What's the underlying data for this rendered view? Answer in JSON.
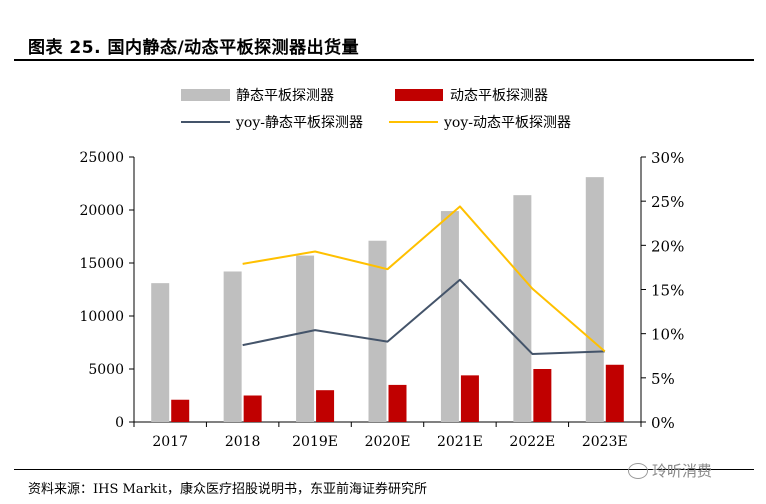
{
  "header": {
    "title": "图表 25. 国内静态/动态平板探测器出货量"
  },
  "footer": {
    "source": "资料来源：IHS Markit，康众医疗招股说明书，东亚前海证券研究所",
    "watermark": "玲听消费"
  },
  "colors": {
    "static_bar": "#BFBFBF",
    "dynamic_bar": "#C00000",
    "yoy_static": "#44546A",
    "yoy_dynamic": "#FFC000"
  },
  "chart_data": {
    "type": "bar",
    "categories": [
      "2017",
      "2018",
      "2019E",
      "2020E",
      "2021E",
      "2022E",
      "2023E"
    ],
    "series": [
      {
        "name": "静态平板探测器",
        "kind": "bar",
        "axis": "left",
        "values": [
          13100,
          14200,
          15700,
          17100,
          19900,
          21400,
          23100
        ]
      },
      {
        "name": "动态平板探测器",
        "kind": "bar",
        "axis": "left",
        "values": [
          2100,
          2500,
          3000,
          3500,
          4400,
          5000,
          5400
        ]
      },
      {
        "name": "yoy-静态平板探测器",
        "kind": "line",
        "axis": "right",
        "values": [
          null,
          0.087,
          0.104,
          0.091,
          0.161,
          0.077,
          0.08
        ]
      },
      {
        "name": "yoy-动态平板探测器",
        "kind": "line",
        "axis": "right",
        "values": [
          null,
          0.179,
          0.193,
          0.173,
          0.244,
          0.151,
          0.08
        ]
      }
    ],
    "y_left": {
      "min": 0,
      "max": 25000,
      "ticks": [
        "0",
        "5000",
        "10000",
        "15000",
        "20000",
        "25000"
      ]
    },
    "y_right": {
      "min": 0,
      "max": 0.3,
      "ticks": [
        "0%",
        "5%",
        "10%",
        "15%",
        "20%",
        "25%",
        "30%"
      ]
    },
    "legend_position": "top"
  }
}
